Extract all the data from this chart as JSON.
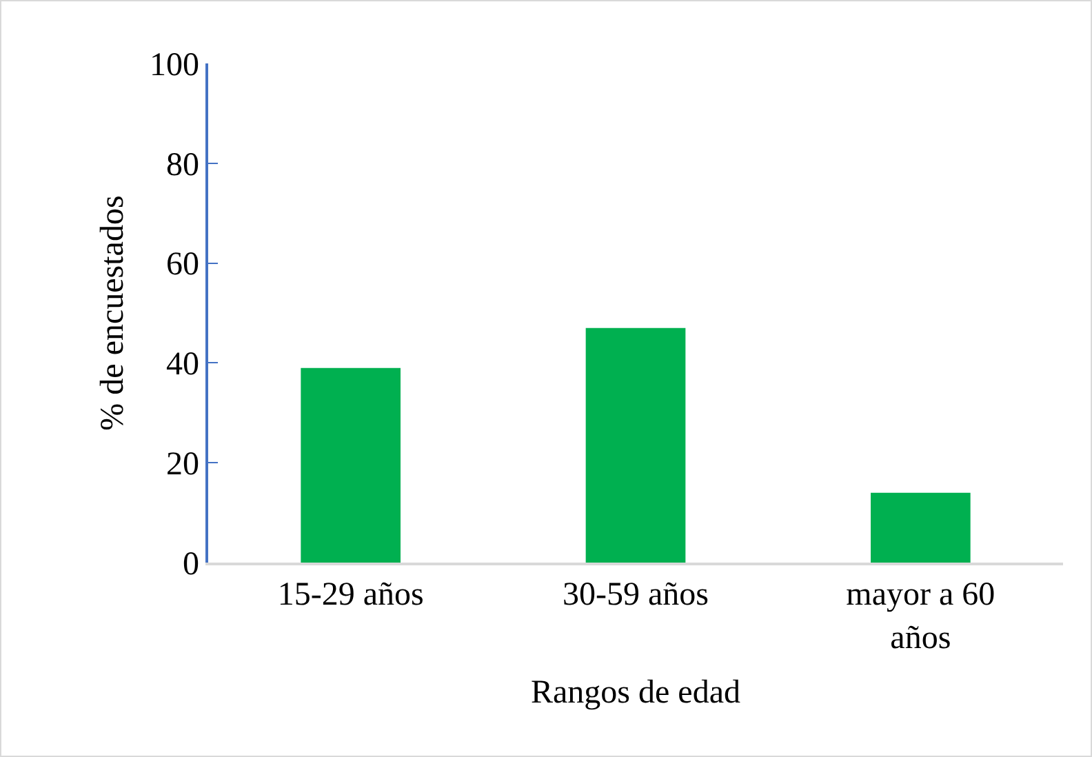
{
  "chart_data": {
    "type": "bar",
    "xlabel": "Rangos de edad",
    "ylabel": "% de encuestados",
    "categories": [
      "15-29 años",
      "30-59 años",
      "mayor a 60 años"
    ],
    "values": [
      39,
      47,
      14
    ],
    "color": "#00b050",
    "ylim": [
      0,
      100
    ],
    "yticks": [
      0,
      20,
      40,
      60,
      80,
      100
    ],
    "grid": false,
    "legend": false
  }
}
